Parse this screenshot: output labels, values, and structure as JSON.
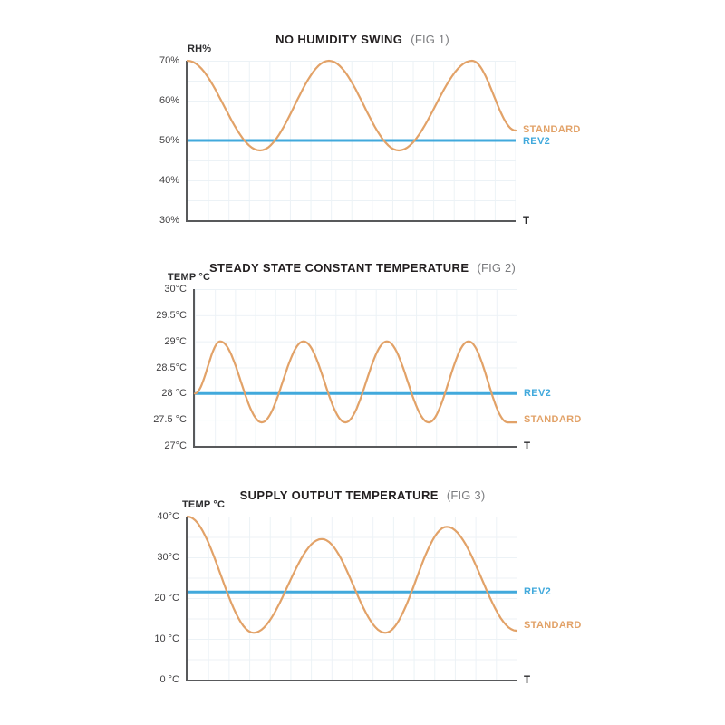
{
  "palette": {
    "standard_orange": "#e2a268",
    "rev2_blue": "#41a9dc",
    "axis_gray": "#58595b",
    "tick_text": "#414042",
    "title_text": "#231f20",
    "fig_text": "#7b7c7f",
    "grid": "#ecf2f6"
  },
  "chart_data": [
    {
      "type": "line",
      "title": "NO HUMIDITY SWING",
      "subtitle": "(FIG 1)",
      "ylabel": "RH%",
      "xlabel": "T",
      "ylim": [
        30,
        70
      ],
      "ytick_labels": [
        "70%",
        "60%",
        "50%",
        "40%",
        "30%"
      ],
      "ytick_values": [
        70,
        60,
        50,
        40,
        30
      ],
      "grid": "on",
      "legend_position": "right",
      "series": [
        {
          "name": "STANDARD",
          "color": "#e2a268",
          "shape": "oscillating",
          "x_frac": [
            0,
            0.221,
            0.431,
            0.644,
            0.867,
            1.0
          ],
          "y": [
            70,
            47.5,
            70,
            47.5,
            70,
            52.5
          ],
          "label_value": 52.7
        },
        {
          "name": "REV2",
          "color": "#41a9dc",
          "shape": "constant",
          "y": 50,
          "label_value": 49.7
        }
      ]
    },
    {
      "type": "line",
      "title": "STEADY STATE CONSTANT TEMPERATURE",
      "subtitle": "(FIG 2)",
      "ylabel": "TEMP °C",
      "xlabel": "T",
      "ylim": [
        27,
        30
      ],
      "ytick_labels": [
        "30°C",
        "29.5°C",
        "29°C",
        "28.5°C",
        "28 °C",
        "27.5 °C",
        "27°C"
      ],
      "ytick_values": [
        30,
        29.5,
        29,
        28.5,
        28,
        27.5,
        27
      ],
      "grid": "on",
      "legend_position": "right",
      "series": [
        {
          "name": "STANDARD",
          "color": "#e2a268",
          "shape": "oscillating",
          "x_frac": [
            0,
            0.079,
            0.208,
            0.338,
            0.468,
            0.597,
            0.727,
            0.851,
            0.972,
            1.0
          ],
          "y": [
            28,
            29,
            27.45,
            29,
            27.45,
            29,
            27.45,
            29,
            27.45,
            27.45
          ],
          "label_value": 27.5
        },
        {
          "name": "REV2",
          "color": "#41a9dc",
          "shape": "constant",
          "y": 28,
          "label_value": 28
        }
      ]
    },
    {
      "type": "line",
      "title": "SUPPLY OUTPUT TEMPERATURE",
      "subtitle": "(FIG 3)",
      "ylabel": "TEMP °C",
      "xlabel": "T",
      "ylim": [
        0,
        40
      ],
      "ytick_labels": [
        "40°C",
        "30°C",
        "20 °C",
        "10 °C",
        "0 °C"
      ],
      "ytick_values": [
        40,
        30,
        20,
        10,
        0
      ],
      "grid": "on",
      "legend_position": "right",
      "series": [
        {
          "name": "STANDARD",
          "color": "#e2a268",
          "shape": "oscillating",
          "x_frac": [
            0,
            0.201,
            0.408,
            0.601,
            0.788,
            1.0
          ],
          "y": [
            40,
            11.5,
            34.5,
            11.5,
            37.5,
            12
          ],
          "label_value": 13.3
        },
        {
          "name": "REV2",
          "color": "#41a9dc",
          "shape": "constant",
          "y": 21.5,
          "label_value": 21.5
        }
      ]
    }
  ]
}
